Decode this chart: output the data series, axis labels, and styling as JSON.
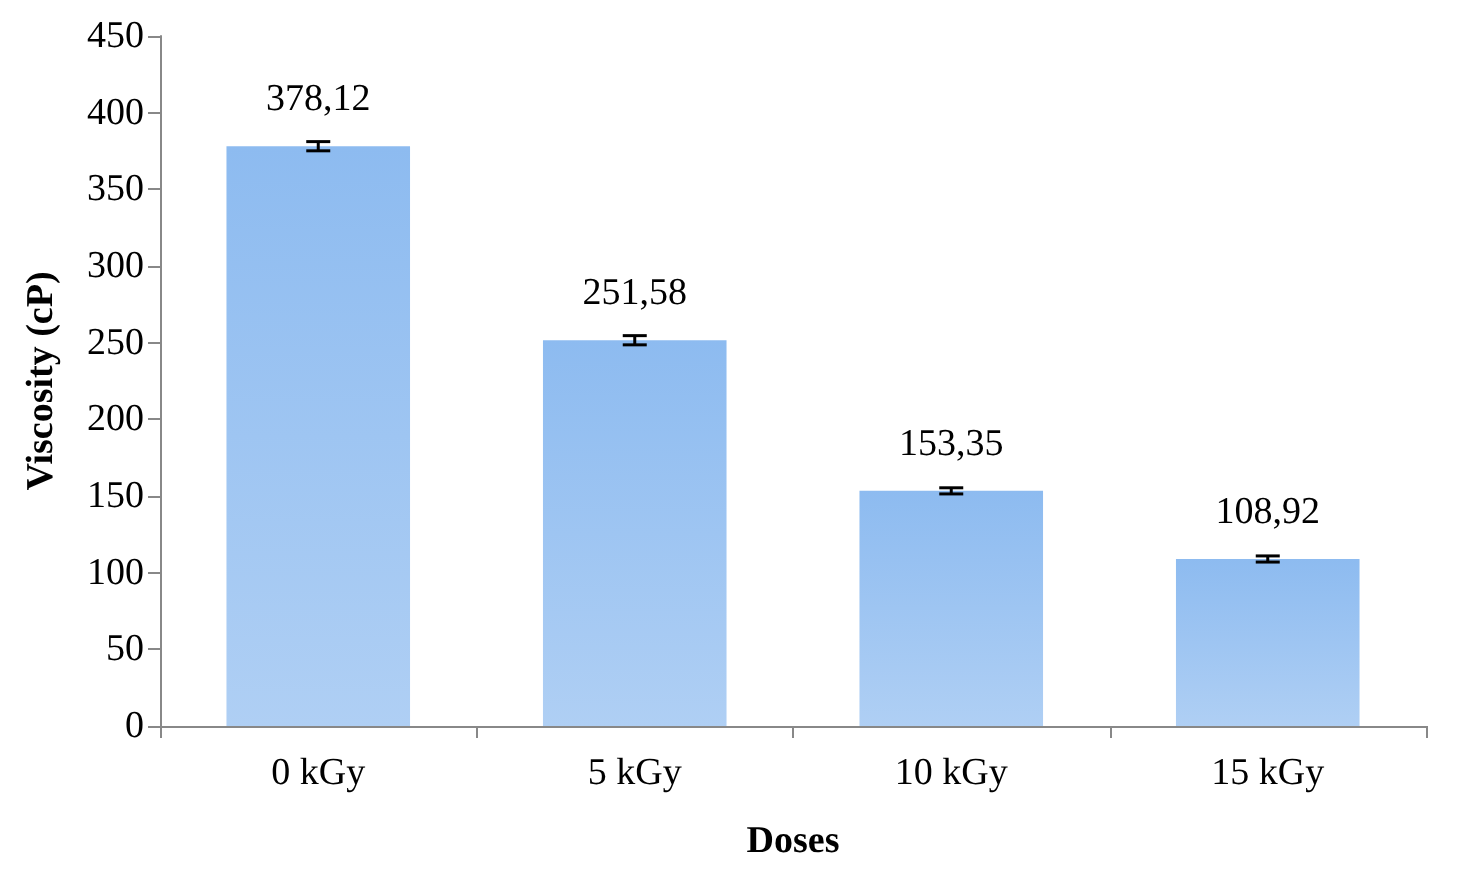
{
  "chart_data": {
    "type": "bar",
    "xlabel": "Doses",
    "ylabel": "Viscosity (cP)",
    "categories": [
      "0 kGy",
      "5 kGy",
      "10 kGy",
      "15 kGy"
    ],
    "values": [
      378.12,
      251.58,
      153.35,
      108.92
    ],
    "value_labels": [
      "378,12",
      "251,58",
      "153,35",
      "108,92"
    ],
    "errors": [
      3,
      3,
      2,
      2
    ],
    "color": "#8dbbf0",
    "ylim": [
      0,
      450
    ],
    "yticks": [
      0,
      50,
      100,
      150,
      200,
      250,
      300,
      350,
      400,
      450
    ],
    "grid": false
  }
}
